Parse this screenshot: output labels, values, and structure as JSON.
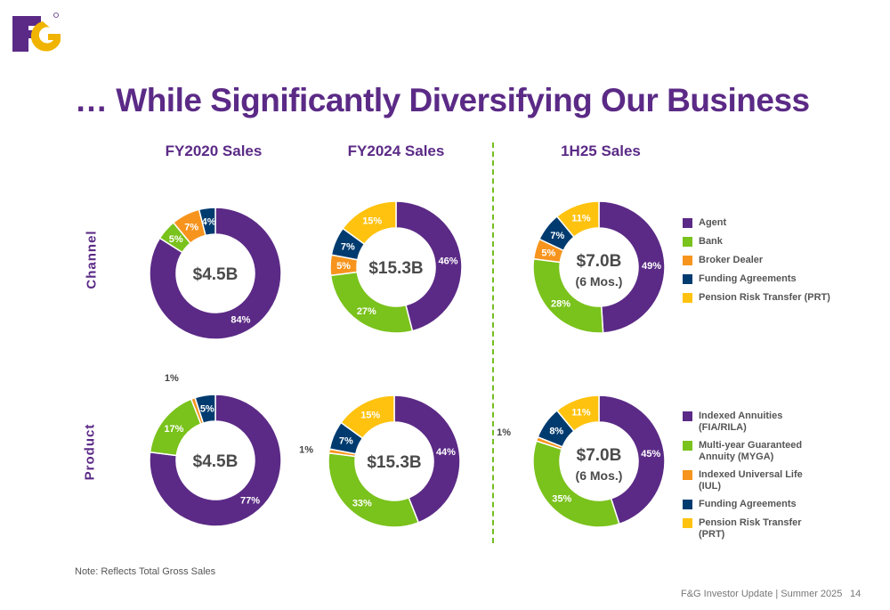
{
  "header": {
    "logo_text": "F&G",
    "title": "… While Significantly Diversifying Our Business"
  },
  "columns": [
    "FY2020 Sales",
    "FY2024 Sales",
    "1H25 Sales"
  ],
  "rows": [
    "Channel",
    "Product"
  ],
  "colors": {
    "purple": "#5b2a86",
    "green": "#7ac21c",
    "orange": "#f7941d",
    "navy": "#003b6f",
    "yellow": "#ffc20e"
  },
  "legends": {
    "channel": [
      "Agent",
      "Bank",
      "Broker Dealer",
      "Funding Agreements",
      "Pension Risk Transfer (PRT)"
    ],
    "product": [
      "Indexed Annuities (FIA/RILA)",
      "Multi-year Guaranteed Annuity (MYGA)",
      "Indexed Universal Life (IUL)",
      "Funding Agreements",
      "Pension Risk Transfer (PRT)"
    ]
  },
  "chart_data": [
    {
      "type": "pie",
      "title": "FY2020 Sales",
      "row": "Channel",
      "center": [
        "$4.5B"
      ],
      "labels": [
        "Agent",
        "Bank",
        "Broker Dealer",
        "Funding Agreements",
        "Pension Risk Transfer (PRT)"
      ],
      "values": [
        84,
        5,
        7,
        4,
        0
      ],
      "value_labels": [
        "84%",
        "5%",
        "7%",
        "4%",
        ""
      ]
    },
    {
      "type": "pie",
      "title": "FY2024 Sales",
      "row": "Channel",
      "center": [
        "$15.3B"
      ],
      "labels": [
        "Agent",
        "Bank",
        "Broker Dealer",
        "Funding Agreements",
        "Pension Risk Transfer (PRT)"
      ],
      "values": [
        46,
        27,
        5,
        7,
        15
      ],
      "value_labels": [
        "46%",
        "27%",
        "5%",
        "7%",
        "15%"
      ]
    },
    {
      "type": "pie",
      "title": "1H25 Sales",
      "row": "Channel",
      "center": [
        "$7.0B",
        "(6 Mos.)"
      ],
      "labels": [
        "Agent",
        "Bank",
        "Broker Dealer",
        "Funding Agreements",
        "Pension Risk Transfer (PRT)"
      ],
      "values": [
        49,
        28,
        5,
        7,
        11
      ],
      "value_labels": [
        "49%",
        "28%",
        "5%",
        "7%",
        "11%"
      ]
    },
    {
      "type": "pie",
      "title": "FY2020 Sales",
      "row": "Product",
      "center": [
        "$4.5B"
      ],
      "labels": [
        "Indexed Annuities (FIA/RILA)",
        "Multi-year Guaranteed Annuity (MYGA)",
        "Indexed Universal Life (IUL)",
        "Funding Agreements",
        "Pension Risk Transfer (PRT)"
      ],
      "values": [
        77,
        17,
        1,
        5,
        0
      ],
      "value_labels": [
        "77%",
        "17%",
        "1%",
        "5%",
        ""
      ]
    },
    {
      "type": "pie",
      "title": "FY2024 Sales",
      "row": "Product",
      "center": [
        "$15.3B"
      ],
      "labels": [
        "Indexed Annuities (FIA/RILA)",
        "Multi-year Guaranteed Annuity (MYGA)",
        "Indexed Universal Life (IUL)",
        "Funding Agreements",
        "Pension Risk Transfer (PRT)"
      ],
      "values": [
        44,
        33,
        1,
        7,
        15
      ],
      "value_labels": [
        "44%",
        "33%",
        "1%",
        "7%",
        "15%"
      ]
    },
    {
      "type": "pie",
      "title": "1H25 Sales",
      "row": "Product",
      "center": [
        "$7.0B",
        "(6 Mos.)"
      ],
      "labels": [
        "Indexed Annuities (FIA/RILA)",
        "Multi-year Guaranteed Annuity (MYGA)",
        "Indexed Universal Life (IUL)",
        "Funding Agreements",
        "Pension Risk Transfer (PRT)"
      ],
      "values": [
        45,
        35,
        1,
        8,
        11
      ],
      "value_labels": [
        "45%",
        "35%",
        "1%",
        "8%",
        "11%"
      ]
    }
  ],
  "note": "Note:  Reflects Total Gross Sales",
  "footer": "F&G Investor Update | Summer 2025",
  "page_number": "14"
}
